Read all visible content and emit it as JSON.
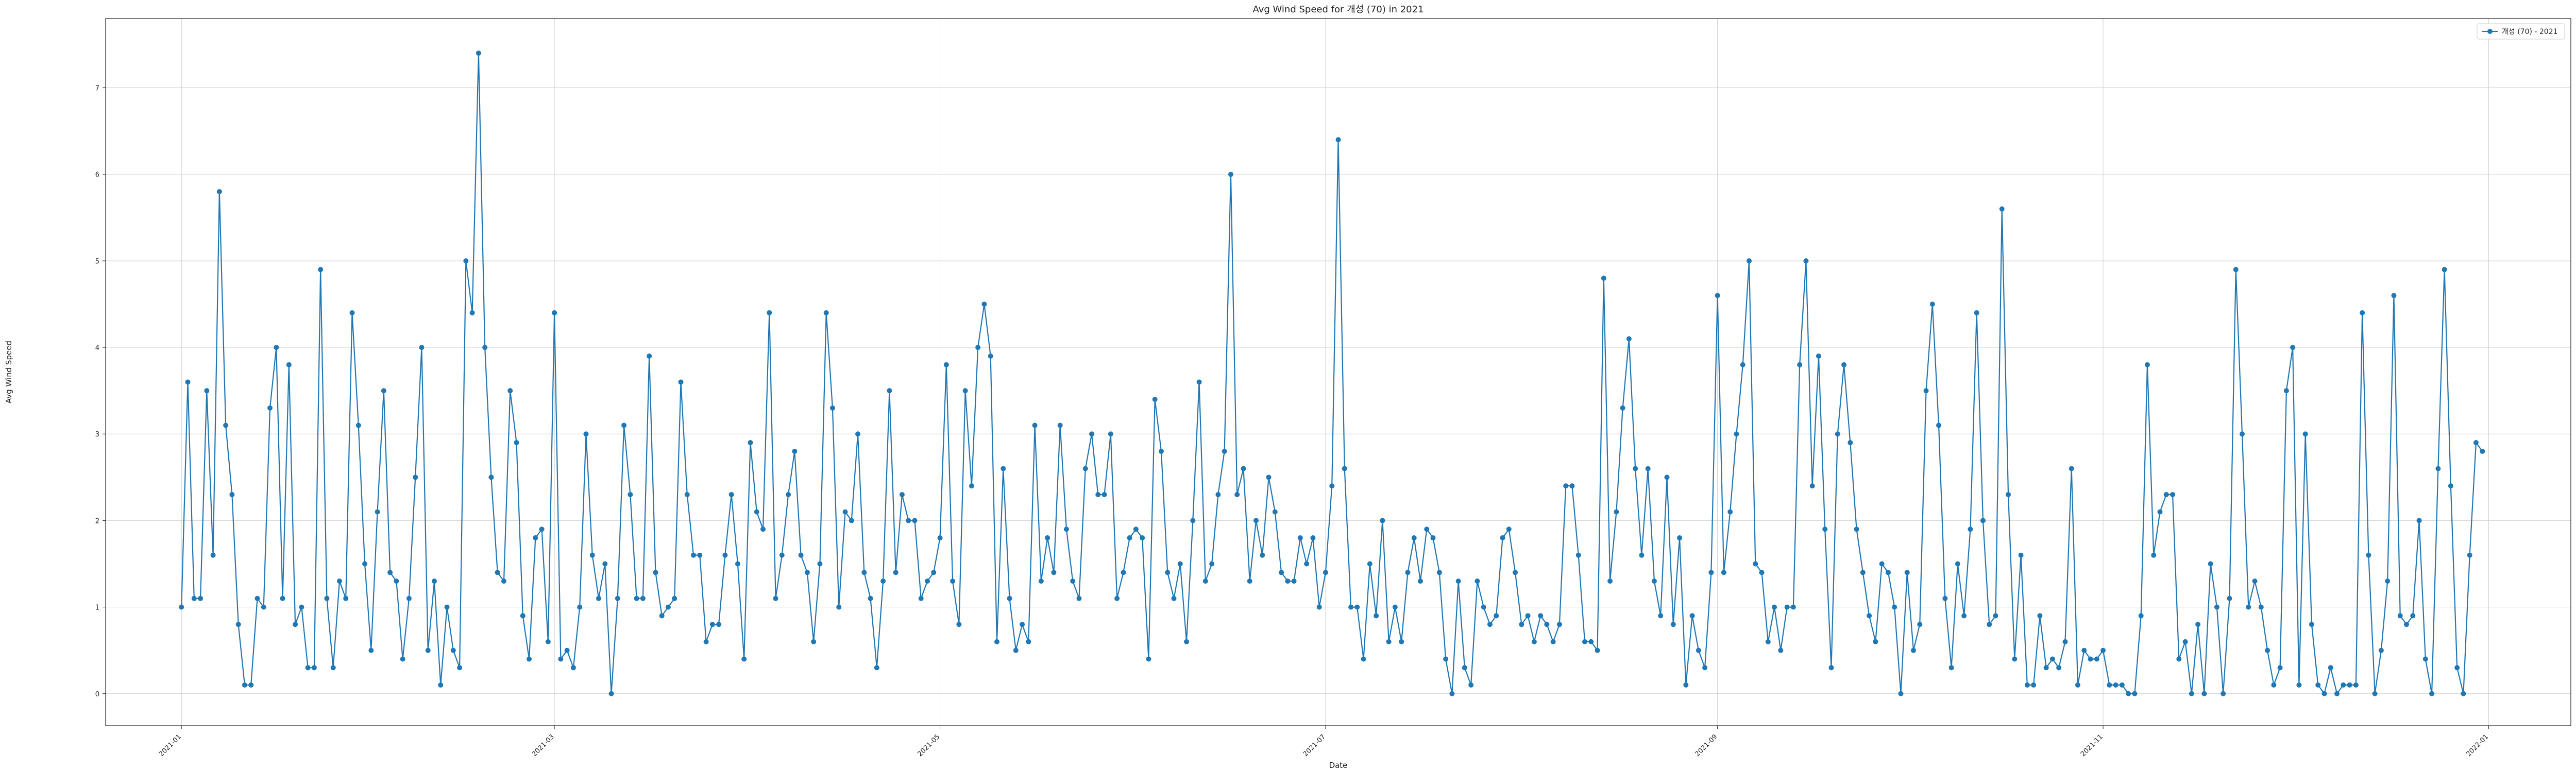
{
  "chart_data": {
    "type": "line",
    "title": "Avg Wind Speed for 개성 (70) in 2021",
    "xlabel": "Date",
    "ylabel": "Avg Wind Speed",
    "xlim": [
      "2020-12-20",
      "2022-01-14"
    ],
    "ylim": [
      -0.37,
      7.8
    ],
    "grid": true,
    "legend_position": "top-right",
    "x_tick_labels": [
      "2021-01",
      "2021-03",
      "2021-05",
      "2021-07",
      "2021-09",
      "2021-11",
      "2022-01"
    ],
    "x_ticks": [
      "2021-01-01",
      "2021-03-01",
      "2021-05-01",
      "2021-07-01",
      "2021-09-01",
      "2021-11-01",
      "2022-01-01"
    ],
    "y_ticks": [
      0,
      1,
      2,
      3,
      4,
      5,
      6,
      7
    ],
    "y_tick_labels": [
      "0",
      "1",
      "2",
      "3",
      "4",
      "5",
      "6",
      "7"
    ],
    "start_date": "2021-01-01",
    "series": [
      {
        "name": "개성 (70) - 2021",
        "color": "#1f77b4",
        "marker": "circle",
        "values": [
          1.0,
          3.6,
          1.1,
          1.1,
          3.5,
          1.6,
          5.8,
          3.1,
          2.3,
          0.8,
          0.1,
          0.1,
          1.1,
          1.0,
          3.3,
          4.0,
          1.1,
          3.8,
          0.8,
          1.0,
          0.3,
          0.3,
          4.9,
          1.1,
          0.3,
          1.3,
          1.1,
          4.4,
          3.1,
          1.5,
          0.5,
          2.1,
          3.5,
          1.4,
          1.3,
          0.4,
          1.1,
          2.5,
          4.0,
          0.5,
          1.3,
          0.1,
          1.0,
          0.5,
          0.3,
          5.0,
          4.4,
          7.4,
          4.0,
          2.5,
          1.4,
          1.3,
          3.5,
          2.9,
          0.9,
          0.4,
          1.8,
          1.9,
          0.6,
          4.4,
          0.4,
          0.5,
          0.3,
          1.0,
          3.0,
          1.6,
          1.1,
          1.5,
          0.0,
          1.1,
          3.1,
          2.3,
          1.1,
          1.1,
          3.9,
          1.4,
          0.9,
          1.0,
          1.1,
          3.6,
          2.3,
          1.6,
          1.6,
          0.6,
          0.8,
          0.8,
          1.6,
          2.3,
          1.5,
          0.4,
          2.9,
          2.1,
          1.9,
          4.4,
          1.1,
          1.6,
          2.3,
          2.8,
          1.6,
          1.4,
          0.6,
          1.5,
          4.4,
          3.3,
          1.0,
          2.1,
          2.0,
          3.0,
          1.4,
          1.1,
          0.3,
          1.3,
          3.5,
          1.4,
          2.3,
          2.0,
          2.0,
          1.1,
          1.3,
          1.4,
          1.8,
          3.8,
          1.3,
          0.8,
          3.5,
          2.4,
          4.0,
          4.5,
          3.9,
          0.6,
          2.6,
          1.1,
          0.5,
          0.8,
          0.6,
          3.1,
          1.3,
          1.8,
          1.4,
          3.1,
          1.9,
          1.3,
          1.1,
          2.6,
          3.0,
          2.3,
          2.3,
          3.0,
          1.1,
          1.4,
          1.8,
          1.9,
          1.8,
          0.4,
          3.4,
          2.8,
          1.4,
          1.1,
          1.5,
          0.6,
          2.0,
          3.6,
          1.3,
          1.5,
          2.3,
          2.8,
          6.0,
          2.3,
          2.6,
          1.3,
          2.0,
          1.6,
          2.5,
          2.1,
          1.4,
          1.3,
          1.3,
          1.8,
          1.5,
          1.8,
          1.0,
          1.4,
          2.4,
          6.4,
          2.6,
          1.0,
          1.0,
          0.4,
          1.5,
          0.9,
          2.0,
          0.6,
          1.0,
          0.6,
          1.4,
          1.8,
          1.3,
          1.9,
          1.8,
          1.4,
          0.4,
          0.0,
          1.3,
          0.3,
          0.1,
          1.3,
          1.0,
          0.8,
          0.9,
          1.8,
          1.9,
          1.4,
          0.8,
          0.9,
          0.6,
          0.9,
          0.8,
          0.6,
          0.8,
          2.4,
          2.4,
          1.6,
          0.6,
          0.6,
          0.5,
          4.8,
          1.3,
          2.1,
          3.3,
          4.1,
          2.6,
          1.6,
          2.6,
          1.3,
          0.9,
          2.5,
          0.8,
          1.8,
          0.1,
          0.9,
          0.5,
          0.3,
          1.4,
          4.6,
          1.4,
          2.1,
          3.0,
          3.8,
          5.0,
          1.5,
          1.4,
          0.6,
          1.0,
          0.5,
          1.0,
          1.0,
          3.8,
          5.0,
          2.4,
          3.9,
          1.9,
          0.3,
          3.0,
          3.8,
          2.9,
          1.9,
          1.4,
          0.9,
          0.6,
          1.5,
          1.4,
          1.0,
          0.0,
          1.4,
          0.5,
          0.8,
          3.5,
          4.5,
          3.1,
          1.1,
          0.3,
          1.5,
          0.9,
          1.9,
          4.4,
          2.0,
          0.8,
          0.9,
          5.6,
          2.3,
          0.4,
          1.6,
          0.1,
          0.1,
          0.9,
          0.3,
          0.4,
          0.3,
          0.6,
          2.6,
          0.1,
          0.5,
          0.4,
          0.4,
          0.5,
          0.1,
          0.1,
          0.1,
          0.0,
          0.0,
          0.9,
          3.8,
          1.6,
          2.1,
          2.3,
          2.3,
          0.4,
          0.6,
          0.0,
          0.8,
          0.0,
          1.5,
          1.0,
          0.0,
          1.1,
          4.9,
          3.0,
          1.0,
          1.3,
          1.0,
          0.5,
          0.1,
          0.3,
          3.5,
          4.0,
          0.1,
          3.0,
          0.8,
          0.1,
          0.0,
          0.3,
          0.0,
          0.1,
          0.1,
          0.1,
          4.4,
          1.6,
          0.0,
          0.5,
          1.3,
          4.6,
          0.9,
          0.8,
          0.9,
          2.0,
          0.4,
          0.0,
          2.6,
          4.9,
          2.4,
          0.3,
          0.0,
          1.6,
          2.9,
          2.8
        ]
      }
    ]
  }
}
